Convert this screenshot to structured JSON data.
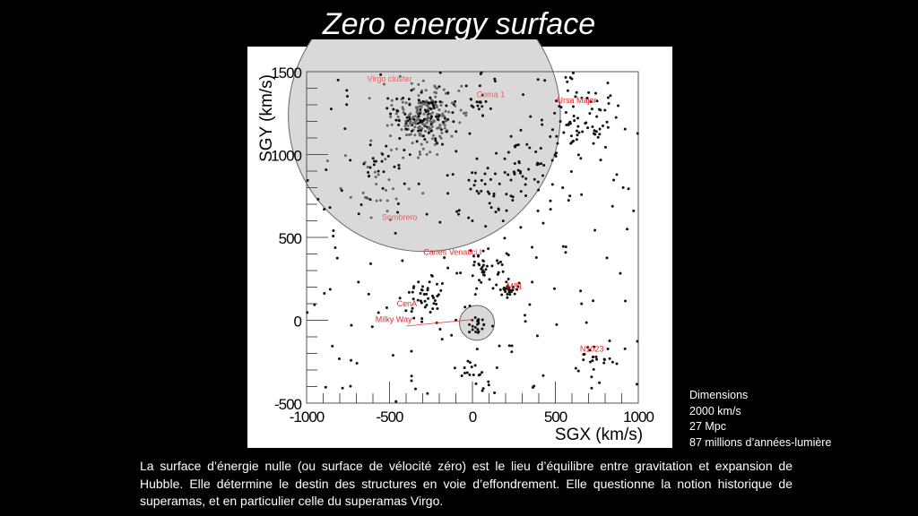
{
  "title": "Zero energy surface",
  "dimensions": {
    "heading": "Dimensions",
    "lines": [
      "2000 km/s",
      "27 Mpc",
      "87 millions d’années-lumière"
    ]
  },
  "caption": "La surface d’énergie nulle (ou surface de vélocité zéro) est le lieu d’équilibre entre gravitation et expansion de Hubble. Elle détermine le destin des structures en voie d’effondrement. Elle questionne la notion historique de superamas, et en particulier celle du  superamas Virgo.",
  "chart_data": {
    "type": "scatter",
    "xlabel": "SGX (km/s)",
    "ylabel": "SGY (km/s)",
    "xlim": [
      -1000,
      1000
    ],
    "ylim": [
      -500,
      1500
    ],
    "xticks": [
      "-1000",
      "-500",
      "0",
      "500",
      "1000"
    ],
    "xtick_values": [
      -1000,
      -500,
      0,
      500,
      1000
    ],
    "yticks": [
      "-500",
      "0",
      "500",
      "1000",
      "1500"
    ],
    "ytick_values": [
      -500,
      0,
      500,
      1000,
      1500
    ],
    "minor_tick_step": 100,
    "point_color": "#111111",
    "zero_energy_surfaces": [
      {
        "name": "Virgo",
        "center": [
          -290,
          1235
        ],
        "radius": 820,
        "fill": "#d9d9d9"
      },
      {
        "name": "Local Group",
        "center": [
          27,
          -16
        ],
        "radius": 105,
        "fill": "#d9d9d9"
      }
    ],
    "clusters": [
      {
        "name": "Virgo core",
        "center": [
          -290,
          1230
        ],
        "spread": 95,
        "count": 260,
        "gray_fraction": 0.6
      },
      {
        "name": "Coma I",
        "center": [
          40,
          1290
        ],
        "spread": 40,
        "count": 16,
        "gray_fraction": 0
      },
      {
        "name": "Ursa Major",
        "center": [
          620,
          1190
        ],
        "spread": 130,
        "count": 70,
        "gray_fraction": 0
      },
      {
        "name": "Virgo southern extension",
        "center": [
          -560,
          850
        ],
        "spread": 110,
        "count": 55,
        "gray_fraction": 0.6
      },
      {
        "name": "Canes Venatici I",
        "center": [
          60,
          330
        ],
        "spread": 75,
        "count": 40,
        "gray_fraction": 0
      },
      {
        "name": "M81",
        "center": [
          205,
          190
        ],
        "spread": 30,
        "count": 28,
        "gray_fraction": 0
      },
      {
        "name": "CenA",
        "center": [
          -290,
          120
        ],
        "spread": 65,
        "count": 40,
        "gray_fraction": 0
      },
      {
        "name": "Local Group",
        "center": [
          25,
          -25
        ],
        "spread": 35,
        "count": 22,
        "gray_fraction": 0
      },
      {
        "name": "N1023",
        "center": [
          720,
          -235
        ],
        "spread": 60,
        "count": 22,
        "gray_fraction": 0
      },
      {
        "name": "Southern filament",
        "center": [
          0,
          -300
        ],
        "spread": 45,
        "count": 16,
        "gray_fraction": 0
      },
      {
        "name": "Eastern filament",
        "center": [
          330,
          900
        ],
        "spread": 120,
        "count": 45,
        "gray_fraction": 0
      },
      {
        "name": "Central filament",
        "center": [
          50,
          800
        ],
        "spread": 110,
        "count": 30,
        "gray_fraction": 0
      }
    ],
    "field_points": 170,
    "labels": [
      {
        "text": "Virgo cluster",
        "at": [
          -500,
          1440
        ],
        "color": "#e06666"
      },
      {
        "text": "Coma 1",
        "at": [
          110,
          1345
        ],
        "color": "#e06666"
      },
      {
        "text": "Ursa Major",
        "at": [
          630,
          1310
        ],
        "color": "#ee2222"
      },
      {
        "text": "Sombrero",
        "at": [
          -440,
          605
        ],
        "color": "#e06666"
      },
      {
        "text": "Canes Venatici I",
        "at": [
          -120,
          395
        ],
        "color": "#ee2222"
      },
      {
        "text": "M81",
        "at": [
          255,
          190
        ],
        "color": "#ee2222"
      },
      {
        "text": "CenA",
        "at": [
          -395,
          85
        ],
        "color": "#ee2222"
      },
      {
        "text": "Milky Way",
        "at": [
          -475,
          -10
        ],
        "color": "#ee2222"
      },
      {
        "text": "N1023",
        "at": [
          720,
          -190
        ],
        "color": "#ee2222"
      }
    ]
  }
}
